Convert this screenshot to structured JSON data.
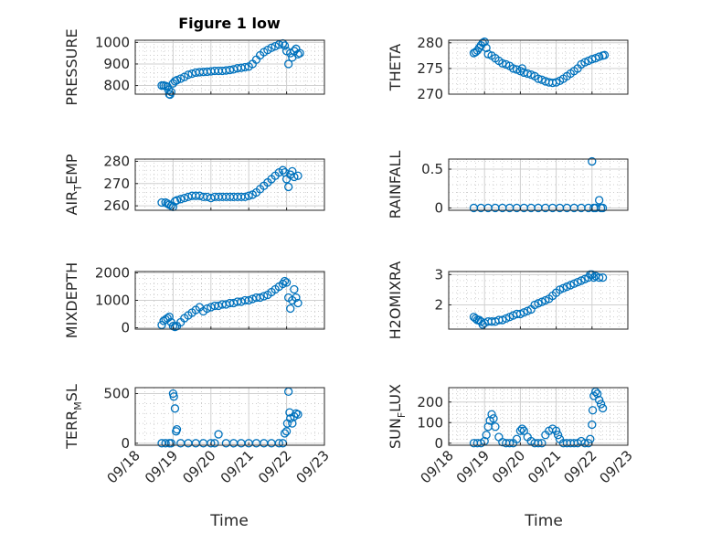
{
  "figure": {
    "title": "Figure 1 low",
    "xlabel_left": "Time",
    "xlabel_right": "Time",
    "marker_color": "#0072BD",
    "x_tick_labels": [
      "09/18",
      "09/19",
      "09/20",
      "09/21",
      "09/22",
      "09/23"
    ]
  },
  "chart_data": [
    {
      "id": "pressure",
      "type": "scatter",
      "ylabel": "PRESSURE",
      "xlim": [
        0,
        5
      ],
      "ylim": [
        760,
        1010
      ],
      "yticks": [
        800,
        900,
        1000
      ],
      "xticks": [
        0,
        1,
        2,
        3,
        4,
        5
      ],
      "x": [
        0.7,
        0.75,
        0.8,
        0.85,
        0.88,
        0.9,
        0.92,
        0.95,
        1.0,
        1.05,
        1.1,
        1.2,
        1.3,
        1.4,
        1.5,
        1.6,
        1.7,
        1.8,
        1.9,
        2.0,
        2.1,
        2.2,
        2.3,
        2.4,
        2.5,
        2.6,
        2.7,
        2.8,
        2.9,
        3.0,
        3.1,
        3.2,
        3.3,
        3.4,
        3.5,
        3.6,
        3.7,
        3.8,
        3.9,
        3.95,
        4.0,
        4.05,
        4.1,
        4.15,
        4.2,
        4.25,
        4.3,
        4.35
      ],
      "y": [
        800,
        800,
        798,
        795,
        780,
        760,
        758,
        770,
        810,
        820,
        825,
        832,
        840,
        850,
        855,
        860,
        862,
        863,
        864,
        866,
        868,
        868,
        868,
        870,
        872,
        875,
        880,
        882,
        885,
        888,
        900,
        920,
        940,
        955,
        965,
        975,
        982,
        990,
        995,
        985,
        960,
        900,
        950,
        930,
        960,
        970,
        945,
        950
      ]
    },
    {
      "id": "theta",
      "type": "scatter",
      "ylabel": "THETA",
      "xlim": [
        0,
        5
      ],
      "ylim": [
        270,
        280.5
      ],
      "yticks": [
        270,
        275,
        280
      ],
      "xticks": [
        0,
        1,
        2,
        3,
        4,
        5
      ],
      "x": [
        0.7,
        0.75,
        0.8,
        0.85,
        0.9,
        0.95,
        1.0,
        1.05,
        1.1,
        1.2,
        1.3,
        1.4,
        1.5,
        1.6,
        1.7,
        1.8,
        1.9,
        2.0,
        2.05,
        2.1,
        2.2,
        2.3,
        2.4,
        2.5,
        2.6,
        2.7,
        2.8,
        2.9,
        3.0,
        3.1,
        3.2,
        3.3,
        3.4,
        3.5,
        3.6,
        3.7,
        3.8,
        3.9,
        4.0,
        4.1,
        4.2,
        4.3,
        4.35
      ],
      "y": [
        278,
        278.2,
        278.5,
        279,
        279.5,
        280,
        280.2,
        279,
        277.8,
        277.5,
        277,
        276.5,
        276,
        275.8,
        275.5,
        275,
        274.8,
        274.5,
        275,
        274.2,
        274,
        273.8,
        273.5,
        273,
        272.8,
        272.5,
        272.3,
        272.2,
        272.3,
        272.6,
        273,
        273.5,
        274,
        274.5,
        275,
        275.8,
        276.2,
        276.5,
        276.8,
        277,
        277.3,
        277.5,
        277.6
      ]
    },
    {
      "id": "air_temp",
      "type": "scatter",
      "ylabel_main": "AIR",
      "ylabel_sub": "T",
      "ylabel_end": "EMP",
      "xlim": [
        0,
        5
      ],
      "ylim": [
        258,
        281
      ],
      "yticks": [
        260,
        270,
        280
      ],
      "xticks": [
        0,
        1,
        2,
        3,
        4,
        5
      ],
      "x": [
        0.7,
        0.8,
        0.85,
        0.9,
        0.95,
        1.0,
        1.05,
        1.1,
        1.2,
        1.3,
        1.4,
        1.5,
        1.6,
        1.7,
        1.8,
        1.9,
        2.0,
        2.1,
        2.2,
        2.3,
        2.4,
        2.5,
        2.6,
        2.7,
        2.8,
        2.9,
        3.0,
        3.1,
        3.2,
        3.3,
        3.4,
        3.5,
        3.6,
        3.7,
        3.8,
        3.9,
        3.95,
        4.0,
        4.05,
        4.1,
        4.15,
        4.2,
        4.3
      ],
      "y": [
        261.5,
        261.5,
        261,
        260.5,
        260,
        259.5,
        262,
        262.5,
        263,
        263.5,
        264,
        264.5,
        264.5,
        264.5,
        264,
        264,
        263.5,
        264,
        264,
        264,
        264,
        264,
        264,
        264,
        264,
        264,
        264.5,
        265,
        266,
        267.5,
        269,
        270.5,
        272,
        273.5,
        275,
        276,
        275,
        272,
        268.5,
        274,
        275.5,
        273,
        273.5
      ]
    },
    {
      "id": "rainfall",
      "type": "scatter",
      "ylabel": "RAINFALL",
      "xlim": [
        0,
        5
      ],
      "ylim": [
        -0.03,
        0.63
      ],
      "yticks": [
        0,
        0.5
      ],
      "ytick_labels": [
        "0",
        "0.5"
      ],
      "xticks": [
        0,
        1,
        2,
        3,
        4,
        5
      ],
      "x": [
        0.7,
        0.9,
        1.1,
        1.3,
        1.5,
        1.7,
        1.9,
        2.1,
        2.3,
        2.5,
        2.7,
        2.9,
        3.1,
        3.3,
        3.5,
        3.7,
        3.9,
        4.0,
        4.05,
        4.1,
        4.2,
        4.25,
        4.3
      ],
      "y": [
        0,
        0,
        0,
        0,
        0,
        0,
        0,
        0,
        0,
        0,
        0,
        0,
        0,
        0,
        0,
        0,
        0,
        0.6,
        0,
        0,
        0.1,
        0,
        0
      ]
    },
    {
      "id": "mixdepth",
      "type": "scatter",
      "ylabel": "MIXDEPTH",
      "xlim": [
        0,
        5
      ],
      "ylim": [
        -50,
        2050
      ],
      "yticks": [
        0,
        1000,
        2000
      ],
      "xticks": [
        0,
        1,
        2,
        3,
        4,
        5
      ],
      "x": [
        0.7,
        0.75,
        0.8,
        0.85,
        0.9,
        0.95,
        1.0,
        1.05,
        1.1,
        1.2,
        1.3,
        1.4,
        1.5,
        1.6,
        1.7,
        1.8,
        1.9,
        2.0,
        2.1,
        2.2,
        2.3,
        2.4,
        2.5,
        2.6,
        2.7,
        2.8,
        2.9,
        3.0,
        3.1,
        3.2,
        3.3,
        3.4,
        3.5,
        3.6,
        3.7,
        3.8,
        3.9,
        3.95,
        4.0,
        4.05,
        4.1,
        4.15,
        4.2,
        4.25,
        4.3
      ],
      "y": [
        100,
        250,
        300,
        350,
        400,
        200,
        60,
        30,
        60,
        200,
        350,
        450,
        550,
        650,
        750,
        600,
        700,
        750,
        800,
        800,
        850,
        850,
        900,
        900,
        950,
        950,
        1000,
        1000,
        1050,
        1100,
        1100,
        1150,
        1200,
        1300,
        1400,
        1500,
        1600,
        1700,
        1650,
        1100,
        700,
        1000,
        1400,
        1100,
        900
      ]
    },
    {
      "id": "h2omixra",
      "type": "scatter",
      "ylabel": "H2OMIXRA",
      "xlim": [
        0,
        5
      ],
      "ylim": [
        1.2,
        3.1
      ],
      "yticks": [
        2,
        3
      ],
      "xticks": [
        0,
        1,
        2,
        3,
        4,
        5
      ],
      "x": [
        0.7,
        0.75,
        0.8,
        0.85,
        0.9,
        0.95,
        1.0,
        1.1,
        1.2,
        1.3,
        1.4,
        1.5,
        1.6,
        1.7,
        1.8,
        1.9,
        2.0,
        2.1,
        2.2,
        2.3,
        2.4,
        2.5,
        2.6,
        2.7,
        2.8,
        2.9,
        3.0,
        3.1,
        3.2,
        3.3,
        3.4,
        3.5,
        3.6,
        3.7,
        3.8,
        3.9,
        3.95,
        4.0,
        4.05,
        4.1,
        4.2,
        4.3
      ],
      "y": [
        1.6,
        1.55,
        1.5,
        1.5,
        1.45,
        1.35,
        1.4,
        1.45,
        1.45,
        1.45,
        1.5,
        1.5,
        1.55,
        1.6,
        1.65,
        1.7,
        1.7,
        1.75,
        1.8,
        1.85,
        2.0,
        2.05,
        2.1,
        2.15,
        2.2,
        2.3,
        2.4,
        2.5,
        2.55,
        2.6,
        2.65,
        2.7,
        2.75,
        2.8,
        2.85,
        2.9,
        3.0,
        3.0,
        2.9,
        2.95,
        2.9,
        2.9
      ]
    },
    {
      "id": "terr_msl",
      "type": "scatter",
      "ylabel_main": "TERR",
      "ylabel_sub": "M",
      "ylabel_end": "SL",
      "xlim": [
        0,
        5
      ],
      "ylim": [
        -20,
        560
      ],
      "yticks": [
        0,
        500
      ],
      "xticks": [
        0,
        1,
        2,
        3,
        4,
        5
      ],
      "x": [
        0.7,
        0.8,
        0.9,
        0.95,
        1.0,
        1.02,
        1.05,
        1.08,
        1.1,
        1.2,
        1.4,
        1.6,
        1.8,
        2.0,
        2.1,
        2.2,
        2.4,
        2.6,
        2.8,
        3.0,
        3.2,
        3.4,
        3.6,
        3.8,
        3.9,
        3.95,
        4.0,
        4.02,
        4.05,
        4.08,
        4.1,
        4.15,
        4.2,
        4.25,
        4.3
      ],
      "y": [
        0,
        0,
        0,
        0,
        500,
        470,
        350,
        120,
        140,
        0,
        0,
        0,
        0,
        0,
        0,
        90,
        0,
        0,
        0,
        0,
        0,
        0,
        0,
        0,
        0,
        100,
        120,
        200,
        520,
        310,
        250,
        200,
        270,
        300,
        290
      ]
    },
    {
      "id": "sun_flux",
      "type": "scatter",
      "ylabel_main": "SUN",
      "ylabel_sub": "F",
      "ylabel_end": "LUX",
      "xlim": [
        0,
        5
      ],
      "ylim": [
        -10,
        270
      ],
      "yticks": [
        0,
        100,
        200
      ],
      "xticks": [
        0,
        1,
        2,
        3,
        4,
        5
      ],
      "x": [
        0.7,
        0.8,
        0.9,
        1.0,
        1.05,
        1.1,
        1.15,
        1.2,
        1.25,
        1.3,
        1.4,
        1.5,
        1.6,
        1.7,
        1.8,
        1.9,
        2.0,
        2.05,
        2.1,
        2.2,
        2.3,
        2.4,
        2.5,
        2.6,
        2.7,
        2.8,
        2.9,
        3.0,
        3.05,
        3.1,
        3.2,
        3.3,
        3.4,
        3.5,
        3.6,
        3.7,
        3.8,
        3.9,
        3.95,
        4.0,
        4.02,
        4.05,
        4.1,
        4.15,
        4.2,
        4.25,
        4.3
      ],
      "y": [
        0,
        0,
        0,
        10,
        40,
        80,
        110,
        140,
        120,
        80,
        30,
        5,
        0,
        0,
        0,
        20,
        60,
        70,
        60,
        30,
        10,
        0,
        0,
        0,
        40,
        60,
        70,
        60,
        40,
        20,
        0,
        0,
        0,
        0,
        0,
        10,
        0,
        0,
        20,
        90,
        160,
        230,
        250,
        240,
        210,
        190,
        170
      ]
    }
  ]
}
